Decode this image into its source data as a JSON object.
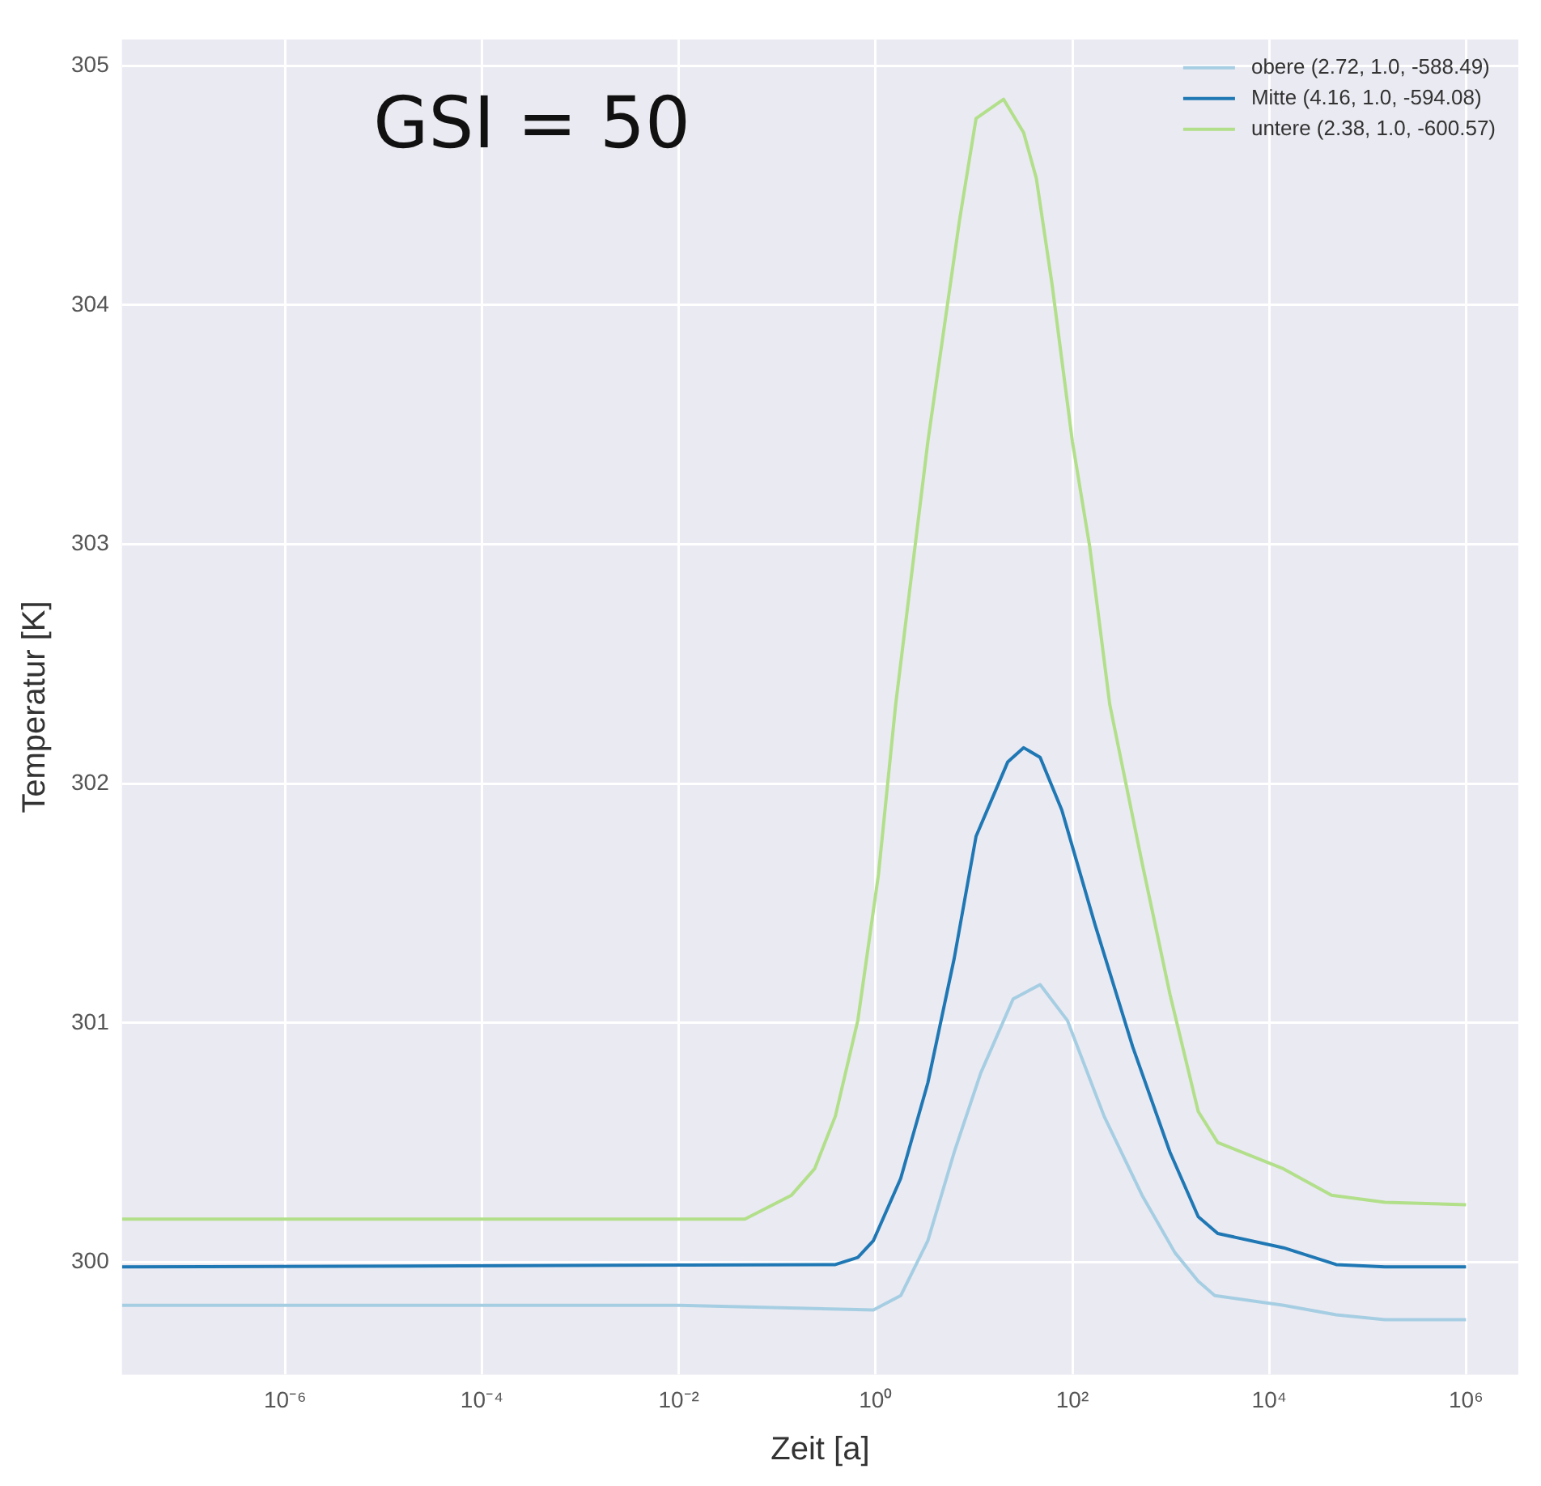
{
  "chart_data": {
    "type": "line",
    "xlabel": "Zeit [a]",
    "ylabel": "Temperatur [K]",
    "annotations": [
      "GSI = 50"
    ],
    "log": "x",
    "grid": true,
    "legend": "top right",
    "marker": "none",
    "line_style": "solid",
    "xlim": [
      2.2e-08,
      3400000.0
    ],
    "xticks": [
      {
        "value": 1e-06,
        "label": "10⁻⁶"
      },
      {
        "value": 0.0001,
        "label": "10⁻⁴"
      },
      {
        "value": 0.01,
        "label": "10⁻²"
      },
      {
        "value": 1,
        "label": "10⁰"
      },
      {
        "value": 100,
        "label": "10²"
      },
      {
        "value": 10000,
        "label": "10⁴"
      },
      {
        "value": 1000000,
        "label": "10⁶"
      }
    ],
    "ylim": [
      299.53,
      305.11
    ],
    "yticks": [
      300,
      301,
      302,
      303,
      304,
      305
    ],
    "series": [
      {
        "name": "obere (2.72, 1.0, -588.49)",
        "color": "#a6cee3",
        "x": [
          2.2e-08,
          0.01,
          0.95,
          1.8,
          3.4,
          6.3,
          11.7,
          25,
          47,
          89,
          210,
          510,
          1100,
          1900,
          2800,
          14000,
          48000,
          150000,
          1000000
        ],
        "values": [
          299.82,
          299.82,
          299.8,
          299.86,
          300.09,
          300.46,
          300.79,
          301.1,
          301.16,
          301.01,
          300.61,
          300.28,
          300.04,
          299.92,
          299.86,
          299.82,
          299.78,
          299.76,
          299.76
        ]
      },
      {
        "name": "Mitte (4.16, 1.0, -594.08)",
        "color": "#1f78b4",
        "x": [
          2.2e-08,
          0.39,
          0.66,
          0.95,
          1.8,
          3.4,
          6.3,
          10.5,
          22,
          32,
          47,
          78,
          170,
          410,
          980,
          1900,
          3000,
          14000,
          48000,
          150000,
          1000000
        ],
        "values": [
          299.98,
          299.99,
          300.02,
          300.09,
          300.35,
          300.75,
          301.27,
          301.78,
          302.09,
          302.15,
          302.11,
          301.89,
          301.41,
          300.9,
          300.46,
          300.19,
          300.12,
          300.06,
          299.99,
          299.98,
          299.98
        ]
      },
      {
        "name": "untere (2.38, 1.0, -600.57)",
        "color": "#b2df8a",
        "x": [
          2.2e-08,
          0.047,
          0.14,
          0.24,
          0.39,
          0.66,
          1.07,
          1.6,
          3.4,
          7.1,
          10.5,
          20,
          32,
          43,
          62,
          100,
          150,
          240,
          510,
          980,
          1900,
          3000,
          14000,
          43000,
          150000,
          1000000
        ],
        "values": [
          300.18,
          300.18,
          300.28,
          300.39,
          300.61,
          301.01,
          301.62,
          302.33,
          303.43,
          304.35,
          304.78,
          304.86,
          304.72,
          304.53,
          304.09,
          303.43,
          302.99,
          302.33,
          301.67,
          301.12,
          300.63,
          300.5,
          300.39,
          300.28,
          300.25,
          300.24
        ]
      }
    ]
  }
}
